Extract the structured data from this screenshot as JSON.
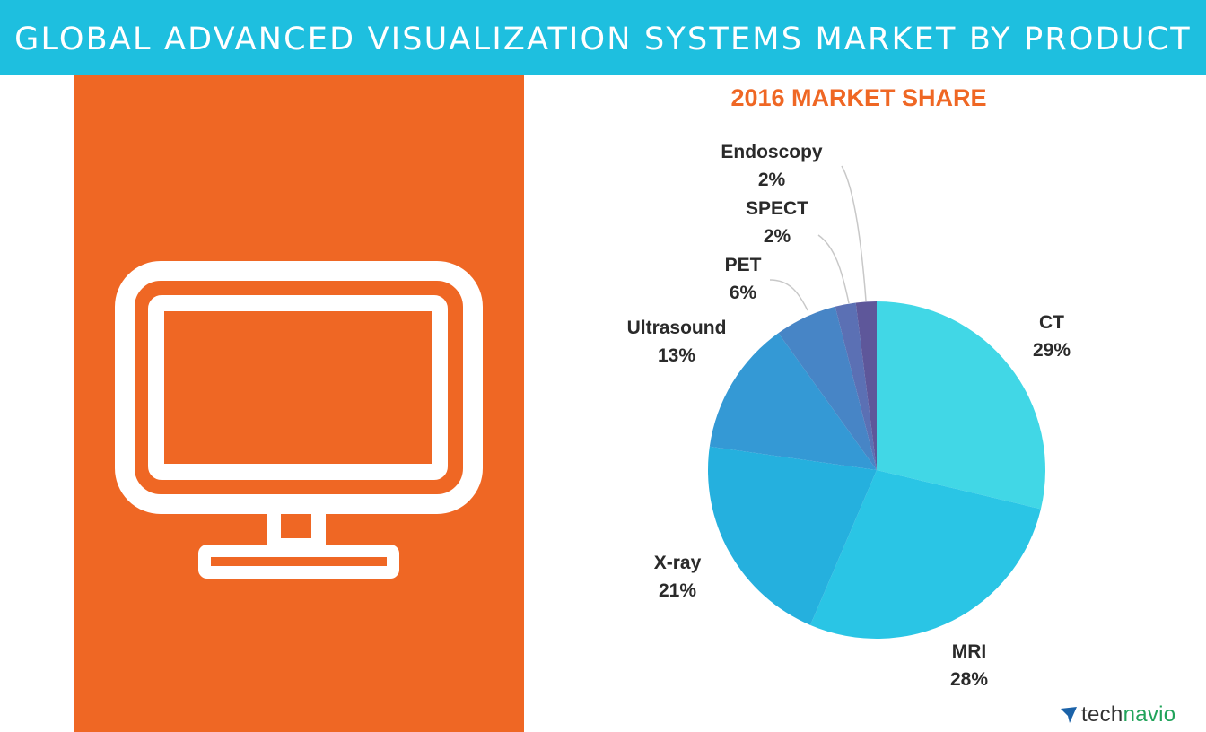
{
  "header": {
    "title": "GLOBAL ADVANCED VISUALIZATION SYSTEMS MARKET BY PRODUCT"
  },
  "colors": {
    "banner": "#1ebfdf",
    "panel": "#ef6724",
    "title_accent": "#ef6724"
  },
  "icon": {
    "name": "monitor-icon"
  },
  "chart_data": {
    "type": "pie",
    "title": "2016 MARKET SHARE",
    "unit": "%",
    "slices": [
      {
        "label": "CT",
        "value": 29,
        "color": "#41d7e6"
      },
      {
        "label": "MRI",
        "value": 28,
        "color": "#2ac5e5"
      },
      {
        "label": "X-ray",
        "value": 21,
        "color": "#25b0de"
      },
      {
        "label": "Ultrasound",
        "value": 13,
        "color": "#3499d5"
      },
      {
        "label": "PET",
        "value": 6,
        "color": "#4785c6"
      },
      {
        "label": "SPECT",
        "value": 2,
        "color": "#5b70b4"
      },
      {
        "label": "Endoscopy",
        "value": 2,
        "color": "#5e579a"
      }
    ]
  },
  "brand": {
    "mark_icon": "technavio-arrow-icon",
    "name_part1": "tech",
    "name_part2": "navio",
    "color1": "#333333",
    "color2": "#21a35a",
    "mark_color": "#1b62a8"
  }
}
